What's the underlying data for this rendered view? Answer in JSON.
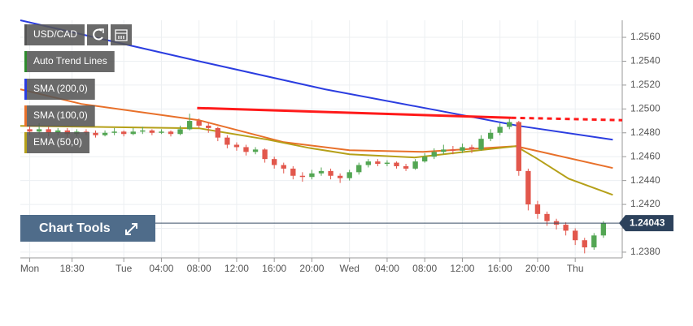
{
  "chart_data": {
    "type": "candlestick",
    "title": "USD/CAD",
    "up_color": "#53a653",
    "down_color": "#e2574c",
    "x": [
      -10,
      -9,
      -8,
      -7,
      -6,
      -5,
      -4,
      -3,
      -2,
      -1,
      0,
      1,
      2,
      3,
      4,
      5,
      6,
      7,
      8,
      9,
      10,
      11,
      12,
      13,
      14,
      15,
      16,
      17,
      18,
      19,
      20,
      21,
      22,
      23,
      24,
      25,
      26,
      27,
      28,
      29,
      30,
      31,
      32,
      33,
      34,
      35,
      36,
      37,
      38,
      39,
      40,
      41,
      42,
      43,
      44,
      45,
      46,
      47,
      48,
      49,
      50,
      51
    ],
    "open": [
      1.2483,
      1.2481,
      1.2483,
      1.248,
      1.2482,
      1.2479,
      1.2481,
      1.248,
      1.2478,
      1.248,
      1.2481,
      1.2479,
      1.2481,
      1.2482,
      1.248,
      1.2481,
      1.2479,
      1.2483,
      1.249,
      1.2486,
      1.2484,
      1.2476,
      1.247,
      1.2468,
      1.2464,
      1.2466,
      1.2458,
      1.2453,
      1.245,
      1.2444,
      1.2443,
      1.2446,
      1.2448,
      1.2444,
      1.2442,
      1.2447,
      1.2453,
      1.2456,
      1.2454,
      1.2455,
      1.2452,
      1.245,
      1.2456,
      1.246,
      1.2464,
      1.2466,
      1.2465,
      1.2468,
      1.2466,
      1.2475,
      1.248,
      1.2485,
      1.2489,
      1.2448,
      1.242,
      1.2412,
      1.2406,
      1.2403,
      1.2398,
      1.239,
      1.2384,
      1.2394
    ],
    "high": [
      1.2486,
      1.2488,
      1.2485,
      1.2484,
      1.2484,
      1.2483,
      1.2483,
      1.2482,
      1.2482,
      1.2484,
      1.2482,
      1.2484,
      1.2485,
      1.2483,
      1.2483,
      1.2482,
      1.2486,
      1.2496,
      1.2492,
      1.2489,
      1.2485,
      1.2478,
      1.2472,
      1.247,
      1.2468,
      1.2467,
      1.246,
      1.2455,
      1.2452,
      1.2447,
      1.2449,
      1.2451,
      1.245,
      1.2446,
      1.2449,
      1.2455,
      1.2458,
      1.2458,
      1.2457,
      1.2456,
      1.2454,
      1.2458,
      1.2463,
      1.2467,
      1.247,
      1.2469,
      1.2471,
      1.247,
      1.2478,
      1.2483,
      1.2488,
      1.2492,
      1.249,
      1.245,
      1.2423,
      1.2414,
      1.2408,
      1.2405,
      1.24,
      1.2392,
      1.2396,
      1.2406
    ],
    "low": [
      1.2478,
      1.2479,
      1.2477,
      1.2478,
      1.2476,
      1.2477,
      1.2478,
      1.2476,
      1.2477,
      1.2478,
      1.2477,
      1.2478,
      1.2479,
      1.2478,
      1.2479,
      1.2477,
      1.2478,
      1.2482,
      1.2484,
      1.248,
      1.2473,
      1.2467,
      1.2465,
      1.2461,
      1.2462,
      1.2455,
      1.245,
      1.2446,
      1.2441,
      1.2439,
      1.2441,
      1.2444,
      1.2441,
      1.2438,
      1.244,
      1.2445,
      1.2451,
      1.2452,
      1.2452,
      1.245,
      1.2448,
      1.2449,
      1.2455,
      1.2458,
      1.2462,
      1.2462,
      1.2463,
      1.2463,
      1.2465,
      1.2473,
      1.2478,
      1.2483,
      1.2444,
      1.2415,
      1.2408,
      1.2402,
      1.2399,
      1.2394,
      1.2386,
      1.2379,
      1.2382,
      1.2392
    ],
    "close": [
      1.2481,
      1.2483,
      1.248,
      1.2482,
      1.2479,
      1.2481,
      1.248,
      1.2478,
      1.248,
      1.2481,
      1.2479,
      1.2481,
      1.2482,
      1.248,
      1.2481,
      1.2479,
      1.2483,
      1.249,
      1.2486,
      1.2484,
      1.2476,
      1.247,
      1.2468,
      1.2464,
      1.2466,
      1.2458,
      1.2453,
      1.245,
      1.2444,
      1.2443,
      1.2446,
      1.2448,
      1.2444,
      1.2442,
      1.2447,
      1.2453,
      1.2456,
      1.2454,
      1.2455,
      1.2452,
      1.245,
      1.2456,
      1.246,
      1.2464,
      1.2466,
      1.2465,
      1.2468,
      1.2466,
      1.2475,
      1.248,
      1.2485,
      1.2489,
      1.2448,
      1.242,
      1.2412,
      1.2406,
      1.2403,
      1.2398,
      1.239,
      1.2384,
      1.2394,
      1.24043
    ],
    "series": [
      {
        "name": "SMA (200,0)",
        "color": "#2b3de0",
        "x": [
          -11,
          8,
          21.4,
          35.2,
          42,
          52
        ],
        "values": [
          1.25743,
          1.254,
          1.25165,
          1.2496,
          1.24858,
          1.24743
        ]
      },
      {
        "name": "SMA (100,0)",
        "color": "#e8702a",
        "x": [
          -11,
          -4.5,
          8,
          17,
          24,
          31.8,
          41.7,
          52
        ],
        "values": [
          1.25165,
          1.25042,
          1.24906,
          1.24722,
          1.24654,
          1.2464,
          1.24688,
          1.24505
        ]
      },
      {
        "name": "EMA (50,0)",
        "color": "#b5a019",
        "x": [
          -11,
          8,
          15.3,
          19.6,
          24,
          30.9,
          37.8,
          41.7,
          43.9,
          47.3,
          52
        ],
        "values": [
          1.24858,
          1.24838,
          1.24743,
          1.24675,
          1.2462,
          1.24593,
          1.24654,
          1.24688,
          1.24586,
          1.24416,
          1.2428
        ]
      }
    ],
    "trend_line": {
      "name": "Auto Trend Lines",
      "color": "#ff1a1a",
      "legend_color": "#2e8b2e",
      "x": [
        7.8,
        41.2
      ],
      "values": [
        1.25008,
        1.24926
      ],
      "projection_x": [
        41.2,
        53
      ],
      "projection_values": [
        1.24926,
        1.24906
      ]
    },
    "last_price": 1.24043,
    "tools_label": "Chart Tools",
    "xlim": [
      -11,
      53
    ],
    "ylim": [
      1.23752,
      1.25743
    ],
    "xticks": [
      {
        "value": -10,
        "label": "Mon"
      },
      {
        "value": -5.5,
        "label": "18:30"
      },
      {
        "value": 0,
        "label": "Tue"
      },
      {
        "value": 4,
        "label": "04:00"
      },
      {
        "value": 8,
        "label": "08:00"
      },
      {
        "value": 12,
        "label": "12:00"
      },
      {
        "value": 16,
        "label": "16:00"
      },
      {
        "value": 20,
        "label": "20:00"
      },
      {
        "value": 24,
        "label": "Wed"
      },
      {
        "value": 28,
        "label": "04:00"
      },
      {
        "value": 32,
        "label": "08:00"
      },
      {
        "value": 36,
        "label": "12:00"
      },
      {
        "value": 40,
        "label": "16:00"
      },
      {
        "value": 44,
        "label": "20:00"
      },
      {
        "value": 48,
        "label": "Thu"
      }
    ],
    "yticks": [
      {
        "value": 1.238,
        "label": "1.2380"
      },
      {
        "value": 1.24,
        "label": "1.2400"
      },
      {
        "value": 1.242,
        "label": "1.2420"
      },
      {
        "value": 1.244,
        "label": "1.2440"
      },
      {
        "value": 1.246,
        "label": "1.2460"
      },
      {
        "value": 1.248,
        "label": "1.2480"
      },
      {
        "value": 1.25,
        "label": "1.2500"
      },
      {
        "value": 1.252,
        "label": "1.2520"
      },
      {
        "value": 1.254,
        "label": "1.2540"
      },
      {
        "value": 1.256,
        "label": "1.2560"
      }
    ],
    "grid": true
  }
}
